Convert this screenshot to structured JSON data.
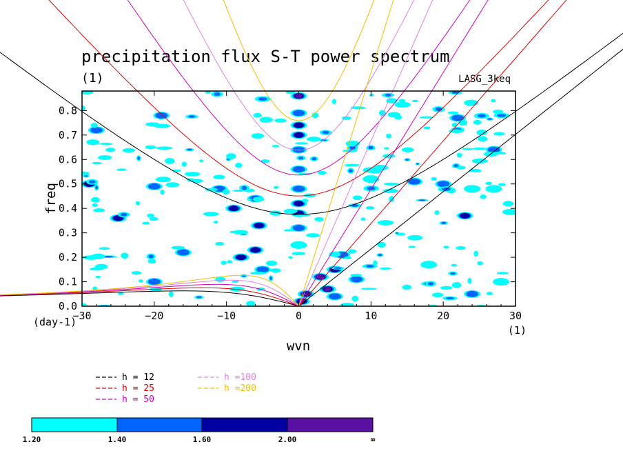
{
  "chart_data": {
    "type": "heatmap",
    "title": "precipitation flux S-T power spectrum",
    "units": "(1)",
    "model": "LASG_3keq",
    "xlabel": "wvn",
    "ylabel": "freq",
    "x_unit": "(1)",
    "y_unit": "(day-1)",
    "xlim": [
      -30,
      30
    ],
    "ylim": [
      0,
      0.88
    ],
    "xticks": [
      -30,
      -20,
      -10,
      0,
      10,
      20,
      30
    ],
    "yticks": [
      0.0,
      0.1,
      0.2,
      0.3,
      0.4,
      0.5,
      0.6,
      0.7,
      0.8
    ],
    "xtick_labels": [
      "−30",
      "−20",
      "−10",
      "0",
      "10",
      "20",
      "30"
    ],
    "ytick_labels": [
      "0.0",
      "0.1",
      "0.2",
      "0.3",
      "0.4",
      "0.5",
      "0.6",
      "0.7",
      "0.8"
    ],
    "contour_levels": [
      1.2,
      1.4,
      1.6,
      2.0
    ],
    "colorbar": {
      "labels": [
        "1.20",
        "1.40",
        "1.60",
        "2.00",
        "∞"
      ],
      "colors": [
        "#00ffff",
        "#0064ff",
        "#0000a0",
        "#5a10a0"
      ]
    },
    "dispersion_curves": [
      {
        "label": "h = 12",
        "color": "#000000"
      },
      {
        "label": "h = 25",
        "color": "#e00000"
      },
      {
        "label": "h = 50",
        "color": "#d000c0"
      },
      {
        "label": "h =100",
        "color": "#e080e0"
      },
      {
        "label": "h =200",
        "color": "#f0c000"
      }
    ],
    "spectral_peaks": [
      {
        "x": 0,
        "y": 0.86,
        "level": 2.0
      },
      {
        "x": 0,
        "y": 0.79,
        "level": 1.4
      },
      {
        "x": 0,
        "y": 0.74,
        "level": 1.6
      },
      {
        "x": 0,
        "y": 0.7,
        "level": 1.6
      },
      {
        "x": 0,
        "y": 0.64,
        "level": 1.4
      },
      {
        "x": 0,
        "y": 0.56,
        "level": 1.4
      },
      {
        "x": 0,
        "y": 0.48,
        "level": 1.4
      },
      {
        "x": 0,
        "y": 0.42,
        "level": 1.6
      },
      {
        "x": 0,
        "y": 0.38,
        "level": 1.6
      },
      {
        "x": 0,
        "y": 0.32,
        "level": 1.4
      },
      {
        "x": 0,
        "y": 0.25,
        "level": 1.2
      },
      {
        "x": 0.4,
        "y": 0.02,
        "level": 2.0
      },
      {
        "x": 1,
        "y": 0.05,
        "level": 1.6
      },
      {
        "x": 3,
        "y": 0.12,
        "level": 2.0
      },
      {
        "x": 4,
        "y": 0.07,
        "level": 2.0
      },
      {
        "x": 5,
        "y": 0.15,
        "level": 1.6
      },
      {
        "x": 6,
        "y": 0.21,
        "level": 1.4
      },
      {
        "x": 8,
        "y": 0.11,
        "level": 1.4
      },
      {
        "x": 5,
        "y": 0.04,
        "level": 1.4
      },
      {
        "x": -6,
        "y": 0.23,
        "level": 1.6
      },
      {
        "x": -8,
        "y": 0.2,
        "level": 1.6
      },
      {
        "x": -5,
        "y": 0.15,
        "level": 1.4
      },
      {
        "x": -5.5,
        "y": 0.33,
        "level": 1.6
      },
      {
        "x": -9,
        "y": 0.4,
        "level": 1.6
      },
      {
        "x": -11,
        "y": 0.48,
        "level": 1.4
      },
      {
        "x": -6,
        "y": 0.44,
        "level": 1.4
      },
      {
        "x": -20,
        "y": 0.49,
        "level": 1.4
      },
      {
        "x": -25,
        "y": 0.36,
        "level": 1.6
      },
      {
        "x": -29,
        "y": 0.5,
        "level": 1.6
      },
      {
        "x": -19,
        "y": 0.78,
        "level": 1.4
      },
      {
        "x": -28,
        "y": 0.72,
        "level": 1.4
      },
      {
        "x": -16,
        "y": 0.22,
        "level": 1.4
      },
      {
        "x": -20,
        "y": 0.1,
        "level": 1.4
      },
      {
        "x": 16,
        "y": 0.51,
        "level": 1.4
      },
      {
        "x": 20,
        "y": 0.5,
        "level": 1.4
      },
      {
        "x": 24,
        "y": 0.48,
        "level": 1.2
      },
      {
        "x": 23,
        "y": 0.37,
        "level": 1.6
      },
      {
        "x": 27,
        "y": 0.48,
        "level": 1.2
      },
      {
        "x": 22,
        "y": 0.77,
        "level": 1.4
      },
      {
        "x": 27,
        "y": 0.64,
        "level": 1.4
      },
      {
        "x": 24,
        "y": 0.05,
        "level": 1.4
      },
      {
        "x": 28,
        "y": 0.1,
        "level": 1.2
      },
      {
        "x": 18,
        "y": 0.17,
        "level": 1.2
      },
      {
        "x": 10,
        "y": 0.52,
        "level": 1.2
      }
    ]
  }
}
